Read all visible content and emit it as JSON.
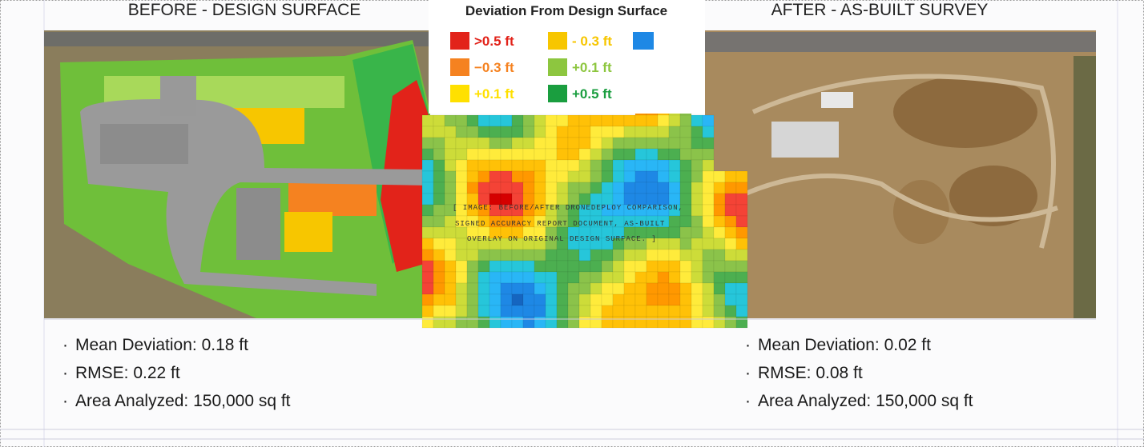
{
  "header": {
    "left_title": "BEFORE - DESIGN SURFACE",
    "right_title": "AFTER - AS-BUILT SURVEY"
  },
  "legend": {
    "title": "Deviation From Design Surface",
    "items": [
      {
        "label": ">0.5 ft",
        "color": "#e2231a"
      },
      {
        "label": "−0.3 ft",
        "color": "#f58220"
      },
      {
        "label": "+0.1 ft",
        "color": "#ffe000"
      },
      {
        "label": "- 0.3 ft",
        "color": "#f7c600"
      },
      {
        "label": "+0.1 ft",
        "color": "#8dc63f"
      },
      {
        "label": "+0.5 ft",
        "color": "#1a9e3f"
      }
    ]
  },
  "image_caption": [
    "[ IMAGE: BEFORE/AFTER DRONEDEPLOY COMPARISON,",
    "SIGNED ACCURACY REPORT DOCUMENT, AS-BUILT",
    "OVERLAY ON ORIGINAL DESIGN SURFACE. ]"
  ],
  "stats": {
    "before": [
      "Mean Deviation: 0.18 ft",
      "RMSE: 0.22 ft",
      "Area Analyzed: 150,000 sq ft"
    ],
    "after": [
      "Mean Deviation: 0.02 ft",
      "RMSE: 0.08 ft",
      "Area Analyzed: 150,000 sq ft"
    ]
  }
}
